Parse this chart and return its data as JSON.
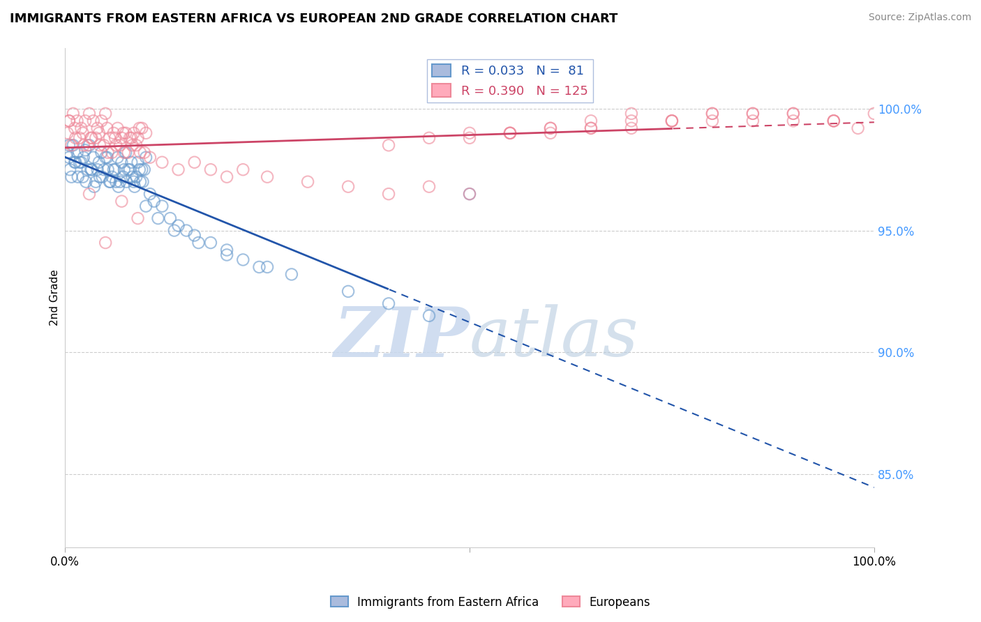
{
  "title": "IMMIGRANTS FROM EASTERN AFRICA VS EUROPEAN 2ND GRADE CORRELATION CHART",
  "source": "Source: ZipAtlas.com",
  "ylabel": "2nd Grade",
  "ylabel_right_ticks": [
    100.0,
    95.0,
    90.0,
    85.0
  ],
  "xlim": [
    0.0,
    100.0
  ],
  "ylim": [
    82.0,
    102.5
  ],
  "blue_color": "#6699cc",
  "pink_color": "#ee8899",
  "blue_line_color": "#2255aa",
  "pink_line_color": "#cc4466",
  "blue_R": 0.033,
  "blue_N": 81,
  "pink_R": 0.39,
  "pink_N": 125,
  "watermark_zip": "ZIP",
  "watermark_atlas": "atlas",
  "legend_label_blue": "Immigrants from Eastern Africa",
  "legend_label_pink": "Europeans",
  "blue_points_x": [
    0.5,
    1.0,
    1.5,
    2.0,
    2.5,
    3.0,
    3.5,
    4.0,
    4.5,
    5.0,
    5.5,
    6.0,
    6.5,
    7.0,
    7.5,
    8.0,
    8.5,
    9.0,
    9.5,
    10.0,
    0.5,
    1.2,
    2.2,
    3.2,
    4.2,
    5.2,
    6.2,
    7.2,
    8.2,
    9.2,
    0.8,
    1.8,
    2.8,
    3.8,
    4.8,
    5.8,
    6.8,
    7.8,
    8.8,
    9.8,
    0.3,
    1.3,
    2.3,
    3.3,
    4.3,
    5.3,
    6.3,
    7.3,
    8.3,
    9.3,
    0.6,
    1.6,
    2.6,
    3.6,
    4.6,
    5.6,
    6.6,
    7.6,
    8.6,
    9.6,
    10.5,
    11.0,
    12.0,
    13.0,
    14.0,
    15.0,
    16.0,
    18.0,
    20.0,
    22.0,
    25.0,
    28.0,
    35.0,
    40.0,
    45.0,
    50.0,
    10.0,
    11.5,
    13.5,
    16.5,
    20.0,
    24.0
  ],
  "blue_points_y": [
    98.0,
    98.5,
    98.2,
    97.8,
    98.3,
    98.5,
    98.0,
    97.5,
    98.2,
    98.0,
    97.0,
    97.5,
    98.0,
    97.8,
    98.2,
    97.5,
    97.0,
    97.8,
    97.5,
    98.0,
    98.5,
    97.8,
    97.2,
    97.5,
    97.8,
    98.0,
    97.5,
    97.2,
    97.8,
    97.5,
    97.2,
    97.8,
    97.5,
    97.0,
    97.5,
    97.2,
    97.0,
    97.5,
    97.2,
    97.5,
    98.2,
    97.8,
    98.0,
    97.5,
    97.2,
    97.5,
    97.0,
    97.5,
    97.2,
    97.0,
    97.5,
    97.2,
    97.0,
    96.8,
    97.2,
    97.0,
    96.8,
    97.0,
    96.8,
    97.0,
    96.5,
    96.2,
    96.0,
    95.5,
    95.2,
    95.0,
    94.8,
    94.5,
    94.2,
    93.8,
    93.5,
    93.2,
    92.5,
    92.0,
    91.5,
    96.5,
    96.0,
    95.5,
    95.0,
    94.5,
    94.0,
    93.5
  ],
  "pink_points_x": [
    0.5,
    1.0,
    1.5,
    2.0,
    2.5,
    3.0,
    3.5,
    4.0,
    4.5,
    5.0,
    5.5,
    6.0,
    6.5,
    7.0,
    7.5,
    8.0,
    8.5,
    9.0,
    9.5,
    10.0,
    0.5,
    1.2,
    2.2,
    3.2,
    4.2,
    5.2,
    6.2,
    7.2,
    8.2,
    9.2,
    0.8,
    1.8,
    2.8,
    3.8,
    4.8,
    5.8,
    6.8,
    7.8,
    8.8,
    9.8,
    0.3,
    1.3,
    2.3,
    3.3,
    4.3,
    5.3,
    6.3,
    7.3,
    8.3,
    9.3,
    10.5,
    12.0,
    14.0,
    16.0,
    18.0,
    20.0,
    22.0,
    25.0,
    30.0,
    35.0,
    40.0,
    45.0,
    50.0,
    55.0,
    60.0,
    65.0,
    70.0,
    75.0,
    80.0,
    85.0,
    90.0,
    95.0,
    98.0,
    55.0,
    65.0,
    75.0,
    85.0,
    95.0,
    40.0,
    50.0,
    60.0,
    70.0,
    80.0,
    90.0,
    45.0,
    55.0,
    65.0,
    75.0,
    85.0,
    95.0,
    50.0,
    60.0,
    70.0,
    80.0,
    90.0,
    100.0,
    3.0,
    5.0,
    7.0,
    9.0
  ],
  "pink_points_y": [
    99.5,
    99.8,
    99.5,
    99.2,
    99.5,
    99.8,
    99.5,
    99.2,
    99.5,
    99.8,
    98.8,
    99.0,
    99.2,
    98.8,
    99.0,
    98.8,
    99.0,
    98.8,
    99.2,
    99.0,
    99.5,
    99.2,
    99.0,
    98.8,
    99.0,
    99.2,
    98.8,
    99.0,
    98.8,
    99.2,
    98.5,
    98.8,
    98.5,
    98.8,
    98.5,
    98.2,
    98.5,
    98.2,
    98.5,
    98.2,
    99.0,
    98.8,
    98.5,
    98.8,
    98.5,
    98.2,
    98.5,
    98.2,
    98.5,
    98.2,
    98.0,
    97.8,
    97.5,
    97.8,
    97.5,
    97.2,
    97.5,
    97.2,
    97.0,
    96.8,
    96.5,
    96.8,
    96.5,
    99.0,
    99.2,
    99.5,
    99.8,
    99.5,
    99.8,
    99.5,
    99.8,
    99.5,
    99.2,
    99.0,
    99.2,
    99.5,
    99.8,
    99.5,
    98.5,
    98.8,
    99.0,
    99.2,
    99.5,
    99.8,
    98.8,
    99.0,
    99.2,
    99.5,
    99.8,
    99.5,
    99.0,
    99.2,
    99.5,
    99.8,
    99.5,
    99.8,
    96.5,
    94.5,
    96.2,
    95.5
  ]
}
